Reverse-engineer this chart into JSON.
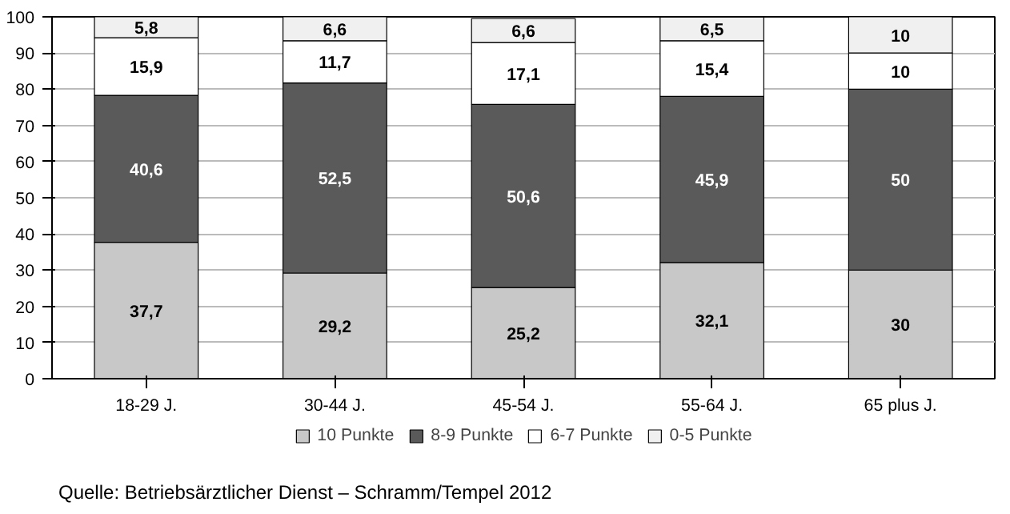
{
  "chart_data": {
    "type": "bar",
    "stacked": true,
    "categories": [
      "18-29 J.",
      "30-44 J.",
      "45-54 J.",
      "55-64 J.",
      "65 plus J."
    ],
    "series": [
      {
        "name": "10 Punkte",
        "color": "#c8c8c8",
        "values": [
          37.7,
          29.2,
          25.2,
          32.1,
          30
        ],
        "value_labels": [
          "37,7",
          "29,2",
          "25,2",
          "32,1",
          "30"
        ]
      },
      {
        "name": "8-9 Punkte",
        "color": "#5a5a5a",
        "values": [
          40.6,
          52.5,
          50.6,
          45.9,
          50
        ],
        "value_labels": [
          "40,6",
          "52,5",
          "50,6",
          "45,9",
          "50"
        ]
      },
      {
        "name": "6-7 Punkte",
        "color": "#ffffff",
        "values": [
          15.9,
          11.7,
          17.1,
          15.4,
          10
        ],
        "value_labels": [
          "15,9",
          "11,7",
          "17,1",
          "15,4",
          "10"
        ]
      },
      {
        "name": "0-5 Punkte",
        "color": "#f0f0f0",
        "values": [
          5.8,
          6.6,
          6.6,
          6.5,
          10
        ],
        "value_labels": [
          "5,8",
          "6,6",
          "6,6",
          "6,5",
          "10"
        ]
      }
    ],
    "ylim": [
      0,
      100
    ],
    "yticks": [
      0,
      10,
      20,
      30,
      40,
      50,
      60,
      70,
      80,
      90,
      100
    ],
    "grid": "y",
    "legend": "bottom",
    "data_labels": true,
    "annotations": [
      "Quelle: Betriebsärztlicher Dienst – Schramm/Tempel 2012"
    ]
  }
}
